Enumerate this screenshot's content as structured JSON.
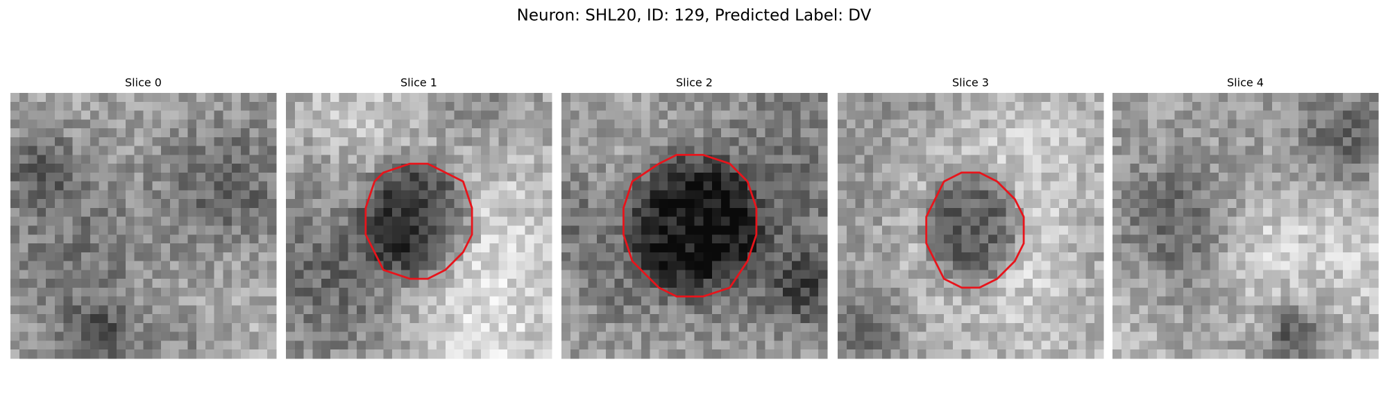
{
  "figure": {
    "title": "Neuron: SHL20, ID: 129, Predicted Label: DV",
    "panels": [
      {
        "title": "Slice 0"
      },
      {
        "title": "Slice 1"
      },
      {
        "title": "Slice 2"
      },
      {
        "title": "Slice 3"
      },
      {
        "title": "Slice 4"
      }
    ]
  }
}
